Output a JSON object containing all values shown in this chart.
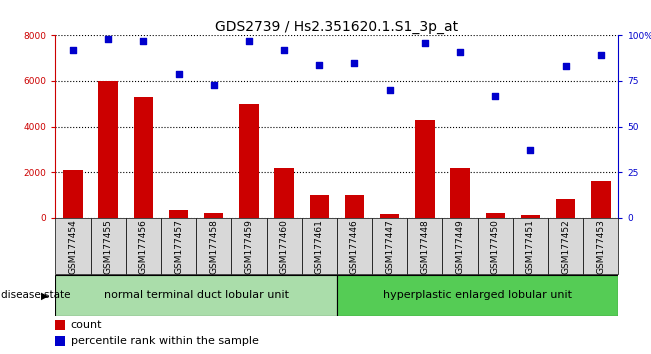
{
  "title": "GDS2739 / Hs2.351620.1.S1_3p_at",
  "samples": [
    "GSM177454",
    "GSM177455",
    "GSM177456",
    "GSM177457",
    "GSM177458",
    "GSM177459",
    "GSM177460",
    "GSM177461",
    "GSM177446",
    "GSM177447",
    "GSM177448",
    "GSM177449",
    "GSM177450",
    "GSM177451",
    "GSM177452",
    "GSM177453"
  ],
  "counts": [
    2100,
    6000,
    5300,
    350,
    200,
    5000,
    2200,
    1000,
    1000,
    150,
    4300,
    2200,
    200,
    100,
    800,
    1600
  ],
  "percentiles": [
    92,
    98,
    97,
    79,
    73,
    97,
    92,
    84,
    85,
    70,
    96,
    91,
    67,
    37,
    83,
    89
  ],
  "group1_label": "normal terminal duct lobular unit",
  "group2_label": "hyperplastic enlarged lobular unit",
  "group1_count": 8,
  "group2_count": 8,
  "bar_color": "#cc0000",
  "dot_color": "#0000cc",
  "group1_bg": "#aaddaa",
  "group2_bg": "#55cc55",
  "cell_bg": "#d8d8d8",
  "ylim_left": [
    0,
    8000
  ],
  "yticks_left": [
    0,
    2000,
    4000,
    6000,
    8000
  ],
  "yticks_right_labels": [
    "0",
    "25",
    "50",
    "75",
    "100%"
  ],
  "disease_state_label": "disease state",
  "legend_count_label": "count",
  "legend_pct_label": "percentile rank within the sample",
  "title_fontsize": 10,
  "tick_fontsize": 6.5,
  "group_fontsize": 8,
  "legend_fontsize": 8
}
